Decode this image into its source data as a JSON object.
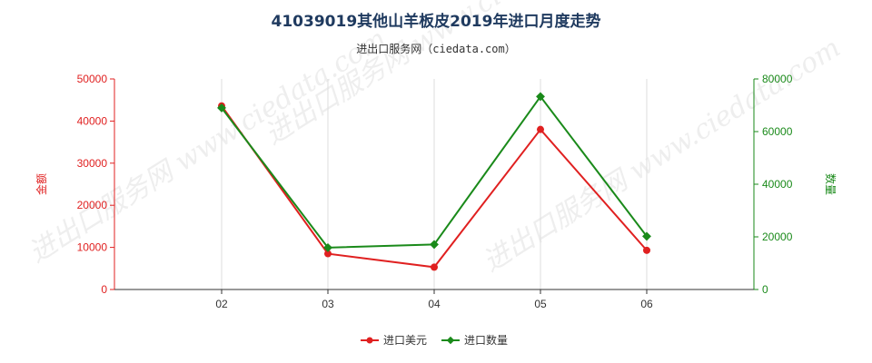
{
  "chart_data": {
    "type": "line",
    "title": "41039019其他山羊板皮2019年进口月度走势",
    "subtitle": "进出口服务网（ciedata.com）",
    "x_categories": [
      "02",
      "03",
      "04",
      "05",
      "06"
    ],
    "ylabel_left": "金额",
    "ylabel_right": "数量",
    "ylim_left": [
      0,
      50000
    ],
    "ylim_right": [
      0,
      80000
    ],
    "yticks_left": [
      "0",
      "10000",
      "20000",
      "30000",
      "40000",
      "50000"
    ],
    "yticks_right": [
      "0",
      "20000",
      "40000",
      "60000",
      "80000"
    ],
    "series": [
      {
        "name": "进口美元",
        "axis": "left",
        "color": "#e02020",
        "marker": "circle",
        "values": [
          43600,
          8500,
          5300,
          38000,
          9300
        ]
      },
      {
        "name": "进口数量",
        "axis": "right",
        "color": "#1a8a1a",
        "marker": "diamond",
        "values": [
          69000,
          15900,
          17100,
          73300,
          20200
        ]
      }
    ],
    "legend_position": "bottom",
    "grid": "vertical",
    "watermark": "进出口服务网 www.ciedata.com"
  }
}
